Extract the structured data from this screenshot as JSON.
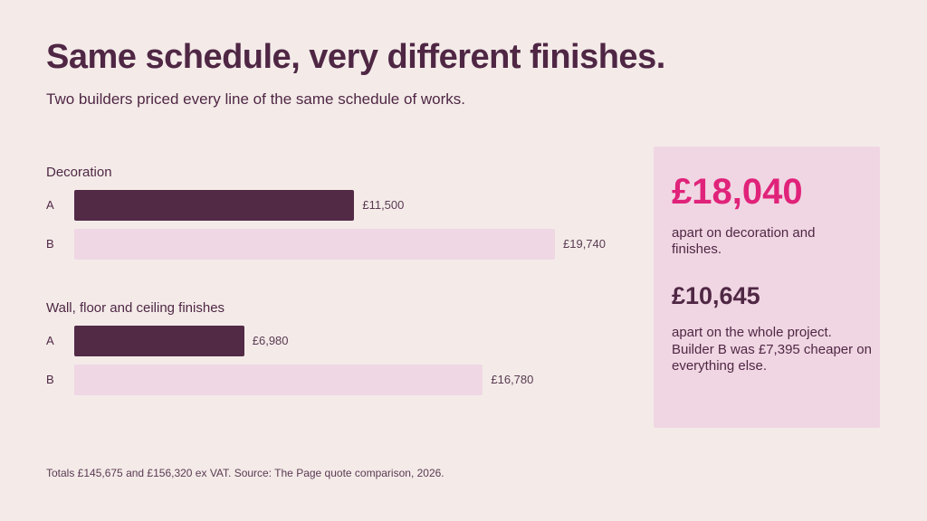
{
  "title": "Same schedule, very different finishes.",
  "subtitle": "Two builders priced every line of the same schedule of works.",
  "chart_data": {
    "type": "bar",
    "orientation": "horizontal",
    "groups": [
      {
        "label": "Decoration",
        "rows": [
          {
            "label": "A",
            "value": 11500,
            "value_label": "£11,500"
          },
          {
            "label": "B",
            "value": 19740,
            "value_label": "£19,740"
          }
        ]
      },
      {
        "label": "Wall, floor and ceiling finishes",
        "rows": [
          {
            "label": "A",
            "value": 6980,
            "value_label": "£6,980"
          },
          {
            "label": "B",
            "value": 16780,
            "value_label": "£16,780"
          }
        ]
      }
    ],
    "xlim": [
      0,
      19740
    ],
    "grid": false,
    "colors": {
      "A": "#522a46",
      "B": "#efd7e4"
    }
  },
  "callout": {
    "big1": "£18,040",
    "desc1": "apart on decoration and finishes.",
    "big2": "£10,645",
    "desc2": "apart on the whole project. Builder B was £7,395 cheaper on everything else."
  },
  "footnote": "Totals £145,675 and £156,320 ex VAT.  Source: The Page quote comparison, 2026."
}
